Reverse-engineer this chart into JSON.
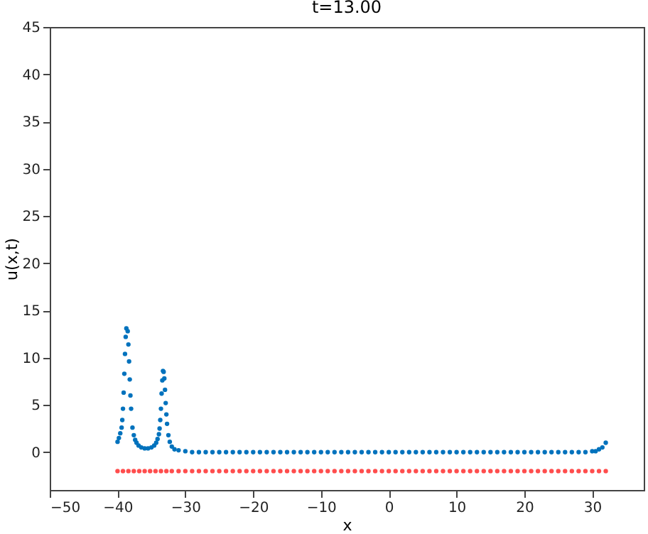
{
  "chart_data": {
    "type": "scatter",
    "title": "t=13.00",
    "xlabel": "x",
    "ylabel": "u(x,t)",
    "x": [
      -40.0,
      -39.8,
      -39.6,
      -39.4,
      -39.3,
      -39.2,
      -39.1,
      -39.0,
      -38.9,
      -38.8,
      -38.7,
      -38.5,
      -38.4,
      -38.3,
      -38.2,
      -38.1,
      -38.0,
      -37.8,
      -37.6,
      -37.4,
      -37.2,
      -36.9,
      -36.5,
      -36.0,
      -35.5,
      -35.0,
      -34.6,
      -34.3,
      -34.1,
      -33.9,
      -33.8,
      -33.7,
      -33.6,
      -33.5,
      -33.4,
      -33.3,
      -33.2,
      -33.1,
      -33.0,
      -32.9,
      -32.8,
      -32.7,
      -32.5,
      -32.3,
      -32.0,
      -31.6,
      -31.0,
      -30.0,
      -29,
      -28,
      -27,
      -26,
      -25,
      -24,
      -23,
      -22,
      -21,
      -20,
      -19,
      -18,
      -17,
      -16,
      -15,
      -14,
      -13,
      -12,
      -11,
      -10,
      -9,
      -8,
      -7,
      -6,
      -5,
      -4,
      -3,
      -2,
      -1,
      0,
      1,
      2,
      3,
      4,
      5,
      6,
      7,
      8,
      9,
      10,
      11,
      12,
      13,
      14,
      15,
      16,
      17,
      18,
      19,
      20,
      21,
      22,
      23,
      24,
      25,
      26,
      27,
      28,
      29,
      30,
      30.5,
      31,
      31.5,
      32
    ],
    "series": [
      {
        "color": "#0072bd",
        "values": [
          1.1,
          1.5,
          2.0,
          2.6,
          3.4,
          4.6,
          6.3,
          8.3,
          10.4,
          12.2,
          13.1,
          12.8,
          11.4,
          9.6,
          7.7,
          6.0,
          4.6,
          2.6,
          1.8,
          1.3,
          1.0,
          0.7,
          0.5,
          0.4,
          0.4,
          0.5,
          0.7,
          1.0,
          1.4,
          1.9,
          2.5,
          3.4,
          4.6,
          6.2,
          7.6,
          8.6,
          8.5,
          7.8,
          6.6,
          5.2,
          4.0,
          3.0,
          1.8,
          1.1,
          0.6,
          0.3,
          0.2,
          0.1,
          0,
          0,
          0,
          0,
          0,
          0,
          0,
          0,
          0,
          0,
          0,
          0,
          0,
          0,
          0,
          0,
          0,
          0,
          0,
          0,
          0,
          0,
          0,
          0,
          0,
          0,
          0,
          0,
          0,
          0,
          0,
          0,
          0,
          0,
          0,
          0,
          0,
          0,
          0,
          0,
          0,
          0,
          0,
          0,
          0,
          0,
          0,
          0,
          0,
          0,
          0,
          0,
          0,
          0,
          0,
          0,
          0,
          0,
          0,
          0.1,
          0.1,
          0.3,
          0.5,
          1.0
        ]
      },
      {
        "color": "#ff4d4d",
        "x": [
          -40,
          -39.2,
          -38.4,
          -37.6,
          -36.8,
          -36,
          -35.2,
          -34.4,
          -33.6,
          -32.8,
          -32,
          -31,
          -30,
          -29,
          -28,
          -27,
          -26,
          -25,
          -24,
          -23,
          -22,
          -21,
          -20,
          -19,
          -18,
          -17,
          -16,
          -15,
          -14,
          -13,
          -12,
          -11,
          -10,
          -9,
          -8,
          -7,
          -6,
          -5,
          -4,
          -3,
          -2,
          -1,
          0,
          1,
          2,
          3,
          4,
          5,
          6,
          7,
          8,
          9,
          10,
          11,
          12,
          13,
          14,
          15,
          16,
          17,
          18,
          19,
          20,
          21,
          22,
          23,
          24,
          25,
          26,
          27,
          28,
          29,
          30,
          31,
          32
        ],
        "values": [
          -2,
          -2,
          -2,
          -2,
          -2,
          -2,
          -2,
          -2,
          -2,
          -2,
          -2,
          -2,
          -2,
          -2,
          -2,
          -2,
          -2,
          -2,
          -2,
          -2,
          -2,
          -2,
          -2,
          -2,
          -2,
          -2,
          -2,
          -2,
          -2,
          -2,
          -2,
          -2,
          -2,
          -2,
          -2,
          -2,
          -2,
          -2,
          -2,
          -2,
          -2,
          -2,
          -2,
          -2,
          -2,
          -2,
          -2,
          -2,
          -2,
          -2,
          -2,
          -2,
          -2,
          -2,
          -2,
          -2,
          -2,
          -2,
          -2,
          -2,
          -2,
          -2,
          -2,
          -2,
          -2,
          -2,
          -2,
          -2,
          -2,
          -2,
          -2,
          -2,
          -2,
          -2,
          -2
        ]
      }
    ],
    "xlim": [
      -50,
      37.6
    ],
    "xticks": [
      -50,
      -40,
      -30,
      -20,
      -10,
      0,
      10,
      20,
      30
    ],
    "ylim": [
      -4,
      45
    ],
    "yticks": [
      0,
      5,
      10,
      15,
      20,
      25,
      30,
      35,
      40,
      45
    ],
    "marker": "circle",
    "grid": false
  }
}
